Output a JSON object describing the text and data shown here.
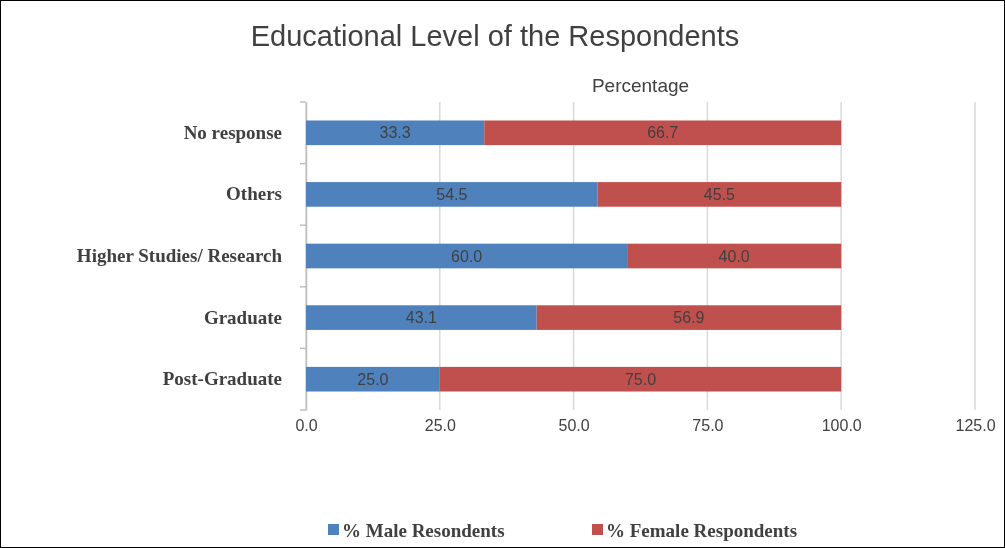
{
  "chart_data": {
    "type": "bar",
    "orientation": "horizontal",
    "stacked": true,
    "title": "Educational Level of the Respondents",
    "xlabel": "Percentage",
    "categories": [
      "No response",
      "Others",
      "Higher Studies/ Research",
      "Graduate",
      "Post-Graduate"
    ],
    "series": [
      {
        "name": "% Male Resondents",
        "color": "#4f81bd",
        "values": [
          33.3,
          54.5,
          60.0,
          43.1,
          25.0
        ],
        "value_labels": [
          "33.3",
          "54.5",
          "60.0",
          "43.1",
          "25.0"
        ]
      },
      {
        "name": "% Female Respondents",
        "color": "#c0504d",
        "values": [
          66.7,
          45.5,
          40.0,
          56.9,
          75.0
        ],
        "value_labels": [
          "66.7",
          "45.5",
          "40.0",
          "56.9",
          "75.0"
        ]
      }
    ],
    "xlim": [
      0,
      125
    ],
    "xticks": [
      {
        "value": 0,
        "label": "0.0"
      },
      {
        "value": 25,
        "label": "25.0"
      },
      {
        "value": 50,
        "label": "50.0"
      },
      {
        "value": 75,
        "label": "75.0"
      },
      {
        "value": 100,
        "label": "100.0"
      },
      {
        "value": 125,
        "label": "125.0"
      }
    ],
    "grid": "x",
    "legend": "bottom"
  }
}
